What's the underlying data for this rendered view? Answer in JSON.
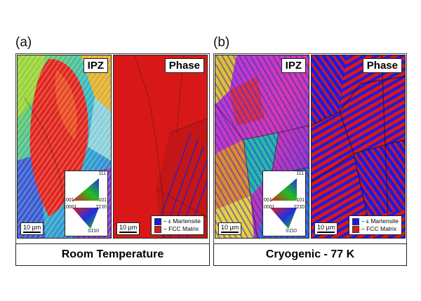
{
  "panels": [
    {
      "id": "a",
      "label": "(a)",
      "ipz_tag": "IPZ",
      "phase_tag": "Phase",
      "scale_bar_ipz": "10 µm",
      "scale_bar_phase": "10 µm",
      "ipf_key": {
        "top": "111",
        "left": "001",
        "right": "101",
        "hex_left": "0001",
        "hex_right": "1̄21̄0",
        "hex_bottom": "01̄10"
      },
      "legend": [
        {
          "label": "– ε Martensite",
          "color": "#1a1ae6"
        },
        {
          "label": "– FCC Matrix",
          "color": "#e01a1a"
        }
      ],
      "caption": "Room Temperature"
    },
    {
      "id": "b",
      "label": "(b)",
      "ipz_tag": "IPZ",
      "phase_tag": "Phase",
      "scale_bar_ipz": "10 µm",
      "scale_bar_phase": "10 µm",
      "ipf_key": {
        "top": "111",
        "left": "001",
        "right": "101",
        "hex_left": "0001",
        "hex_right": "1̄21̄0",
        "hex_bottom": "01̄10"
      },
      "legend": [
        {
          "label": "– ε Martensite",
          "color": "#1a1ae6"
        },
        {
          "label": "– FCC Matrix",
          "color": "#e01a1a"
        }
      ],
      "caption": "Cryogenic - 77 K"
    }
  ]
}
